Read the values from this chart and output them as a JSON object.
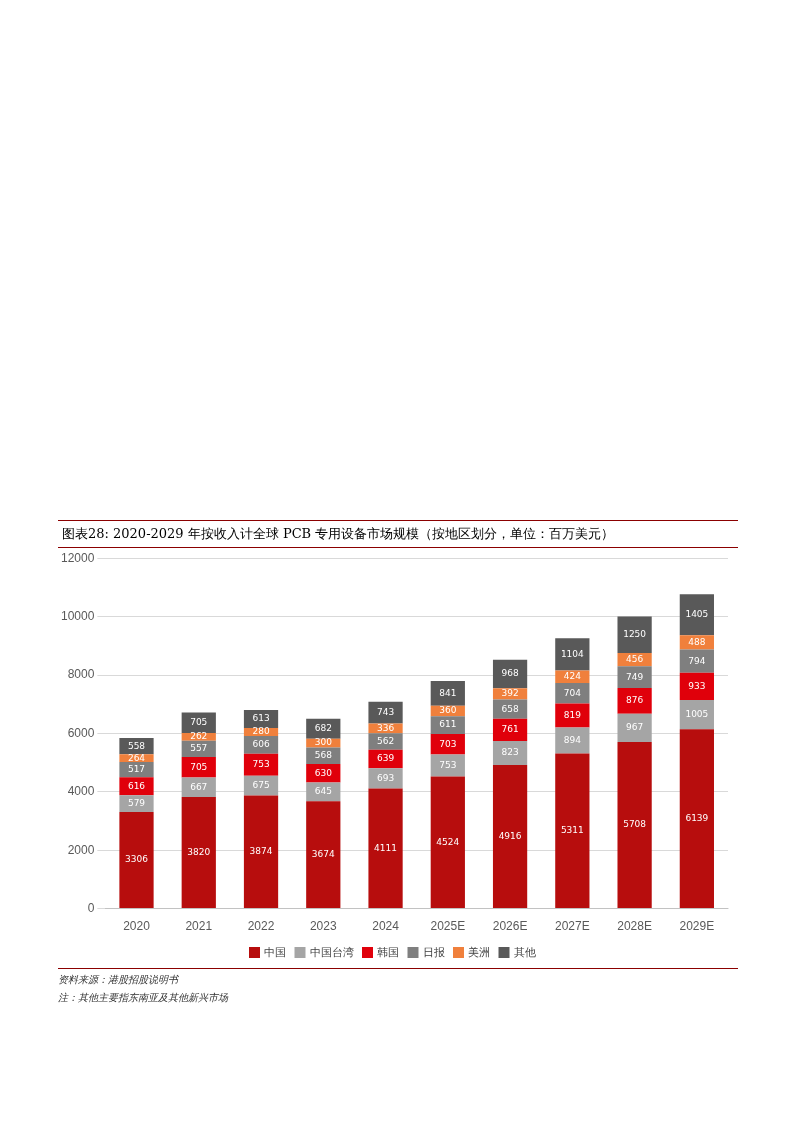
{
  "chart_data": {
    "type": "bar",
    "title": "图表28: 2020-2029 年按收入计全球 PCB 专用设备市场规模（按地区划分，单位：百万美元）",
    "categories": [
      "2020",
      "2021",
      "2022",
      "2023",
      "2024",
      "2025E",
      "2026E",
      "2027E",
      "2028E",
      "2029E"
    ],
    "stacked": true,
    "data_labels": true,
    "grid": "y",
    "legend": "bottom",
    "ylim": [
      0,
      12000
    ],
    "yticks": [
      0,
      2000,
      4000,
      6000,
      8000,
      10000,
      12000
    ],
    "series": [
      {
        "name": "中国",
        "color": "#b70d0d",
        "values": [
          3306,
          3820,
          3874,
          3674,
          4111,
          4524,
          4916,
          5311,
          5708,
          6139
        ]
      },
      {
        "name": "中国台湾",
        "color": "#a5a5a5",
        "values": [
          579,
          667,
          675,
          645,
          693,
          753,
          823,
          894,
          967,
          1005
        ]
      },
      {
        "name": "韩国",
        "color": "#e0000b",
        "values": [
          616,
          705,
          753,
          630,
          639,
          703,
          761,
          819,
          876,
          933
        ]
      },
      {
        "name": "日报",
        "color": "#7f7f7f",
        "values": [
          517,
          557,
          606,
          568,
          562,
          611,
          658,
          704,
          749,
          794
        ]
      },
      {
        "name": "美洲",
        "color": "#f0803c",
        "values": [
          264,
          262,
          280,
          300,
          336,
          360,
          392,
          424,
          456,
          488
        ]
      },
      {
        "name": "其他",
        "color": "#595959",
        "values": [
          558,
          705,
          613,
          682,
          743,
          841,
          968,
          1104,
          1250,
          1405
        ]
      }
    ],
    "annotations": [
      "资料来源：港股招股说明书",
      "注：其他主要指东南亚及其他新兴市场"
    ]
  }
}
